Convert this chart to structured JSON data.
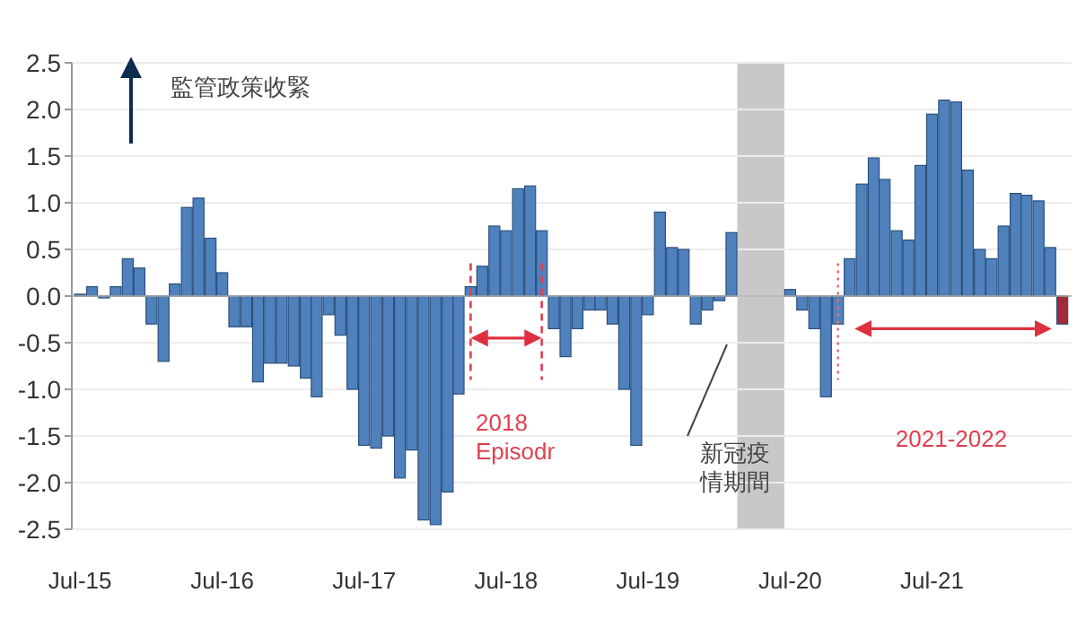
{
  "chart_data": {
    "type": "bar",
    "x": [
      "2015-07",
      "2015-08",
      "2015-09",
      "2015-10",
      "2015-11",
      "2015-12",
      "2016-01",
      "2016-02",
      "2016-03",
      "2016-04",
      "2016-05",
      "2016-06",
      "2016-07",
      "2016-08",
      "2016-09",
      "2016-10",
      "2016-11",
      "2016-12",
      "2017-01",
      "2017-02",
      "2017-03",
      "2017-04",
      "2017-05",
      "2017-06",
      "2017-07",
      "2017-08",
      "2017-09",
      "2017-10",
      "2017-11",
      "2017-12",
      "2018-01",
      "2018-02",
      "2018-03",
      "2018-04",
      "2018-05",
      "2018-06",
      "2018-07",
      "2018-08",
      "2018-09",
      "2018-10",
      "2018-11",
      "2018-12",
      "2019-01",
      "2019-02",
      "2019-03",
      "2019-04",
      "2019-05",
      "2019-06",
      "2019-07",
      "2019-08",
      "2019-09",
      "2019-10",
      "2019-11",
      "2019-12",
      "2020-01",
      "2020-02",
      "2020-03",
      "2020-04",
      "2020-05",
      "2020-06",
      "2020-07",
      "2020-08",
      "2020-09",
      "2020-10",
      "2020-11",
      "2020-12",
      "2021-01",
      "2021-02",
      "2021-03",
      "2021-04",
      "2021-05",
      "2021-06",
      "2021-07",
      "2021-08",
      "2021-09",
      "2021-10",
      "2021-11",
      "2021-12",
      "2022-01",
      "2022-02",
      "2022-03",
      "2022-04",
      "2022-05",
      "2022-06"
    ],
    "values": [
      0.02,
      0.1,
      -0.02,
      0.1,
      0.4,
      0.3,
      -0.3,
      -0.7,
      0.13,
      0.95,
      1.05,
      0.62,
      0.25,
      -0.33,
      -0.33,
      -0.92,
      -0.72,
      -0.72,
      -0.75,
      -0.88,
      -1.08,
      -0.2,
      -0.42,
      -1.0,
      -1.6,
      -1.63,
      -1.5,
      -1.95,
      -1.65,
      -2.4,
      -2.45,
      -2.1,
      -1.05,
      0.1,
      0.32,
      0.75,
      0.7,
      1.15,
      1.18,
      0.7,
      -0.35,
      -0.65,
      -0.35,
      -0.15,
      -0.15,
      -0.3,
      -1.0,
      -1.6,
      -0.2,
      0.9,
      0.52,
      0.5,
      -0.3,
      -0.15,
      -0.05,
      0.68,
      null,
      null,
      null,
      null,
      0.07,
      -0.15,
      -0.35,
      -1.08,
      -0.3,
      0.4,
      1.2,
      1.48,
      1.25,
      0.7,
      0.6,
      1.4,
      1.95,
      2.1,
      2.08,
      1.35,
      0.5,
      0.4,
      0.75,
      1.1,
      1.08,
      1.02,
      0.52,
      -0.3
    ],
    "colors": [
      "#4f81bd",
      "#4f81bd",
      "#4f81bd",
      "#4f81bd",
      "#4f81bd",
      "#4f81bd",
      "#4f81bd",
      "#4f81bd",
      "#4f81bd",
      "#4f81bd",
      "#4f81bd",
      "#4f81bd",
      "#4f81bd",
      "#4f81bd",
      "#4f81bd",
      "#4f81bd",
      "#4f81bd",
      "#4f81bd",
      "#4f81bd",
      "#4f81bd",
      "#4f81bd",
      "#4f81bd",
      "#4f81bd",
      "#4f81bd",
      "#4f81bd",
      "#4f81bd",
      "#4f81bd",
      "#4f81bd",
      "#4f81bd",
      "#4f81bd",
      "#4f81bd",
      "#4f81bd",
      "#4f81bd",
      "#4f81bd",
      "#4f81bd",
      "#4f81bd",
      "#4f81bd",
      "#4f81bd",
      "#4f81bd",
      "#4f81bd",
      "#4f81bd",
      "#4f81bd",
      "#4f81bd",
      "#4f81bd",
      "#4f81bd",
      "#4f81bd",
      "#4f81bd",
      "#4f81bd",
      "#4f81bd",
      "#4f81bd",
      "#4f81bd",
      "#4f81bd",
      "#4f81bd",
      "#4f81bd",
      "#4f81bd",
      "#4f81bd",
      null,
      null,
      null,
      null,
      "#4f81bd",
      "#4f81bd",
      "#4f81bd",
      "#4f81bd",
      "#4f81bd",
      "#4f81bd",
      "#4f81bd",
      "#4f81bd",
      "#4f81bd",
      "#4f81bd",
      "#4f81bd",
      "#4f81bd",
      "#4f81bd",
      "#4f81bd",
      "#4f81bd",
      "#4f81bd",
      "#4f81bd",
      "#4f81bd",
      "#4f81bd",
      "#4f81bd",
      "#4f81bd",
      "#4f81bd",
      "#4f81bd",
      "#a02a3a"
    ],
    "xlim": [
      "2015-06-10",
      "2022-06-25"
    ],
    "xticks": [
      {
        "value": "2015-07",
        "label": "Jul-15"
      },
      {
        "value": "2016-07",
        "label": "Jul-16"
      },
      {
        "value": "2017-07",
        "label": "Jul-17"
      },
      {
        "value": "2018-07",
        "label": "Jul-18"
      },
      {
        "value": "2019-07",
        "label": "Jul-19"
      },
      {
        "value": "2020-07",
        "label": "Jul-20"
      },
      {
        "value": "2021-07",
        "label": "Jul-21"
      }
    ],
    "ylim": [
      -2.5,
      2.5
    ],
    "yticks": [
      {
        "value": 2.5,
        "label": "2.5"
      },
      {
        "value": 2,
        "label": "2.0"
      },
      {
        "value": 1.5,
        "label": "1.5"
      },
      {
        "value": 1,
        "label": "1.0"
      },
      {
        "value": 0.5,
        "label": "0.5"
      },
      {
        "value": 0,
        "label": "0.0"
      },
      {
        "value": -0.5,
        "label": "-0.5"
      },
      {
        "value": -1,
        "label": "-1.0"
      },
      {
        "value": -1.5,
        "label": "-1.5"
      },
      {
        "value": -2,
        "label": "-2.0"
      },
      {
        "value": -2.5,
        "label": "-2.5"
      }
    ],
    "grid": "y",
    "bands": [
      {
        "axis": "x",
        "from": "2020-02-16",
        "to": "2020-06-16",
        "color": "#c8c8c8"
      }
    ],
    "ref_lines": [
      {
        "axis": "x",
        "value": "2018-04",
        "color": "#e04050",
        "line_style": "dashed"
      },
      {
        "axis": "x",
        "value": "2018-10",
        "color": "#e04050",
        "line_style": "dashed"
      },
      {
        "axis": "x",
        "value": "2020-11",
        "color": "#e07080",
        "line_style": "dotted"
      }
    ],
    "annotations": [
      "監管政策收緊",
      "2018 Episodr",
      "新冠疫情期間",
      "2021-2022"
    ]
  }
}
